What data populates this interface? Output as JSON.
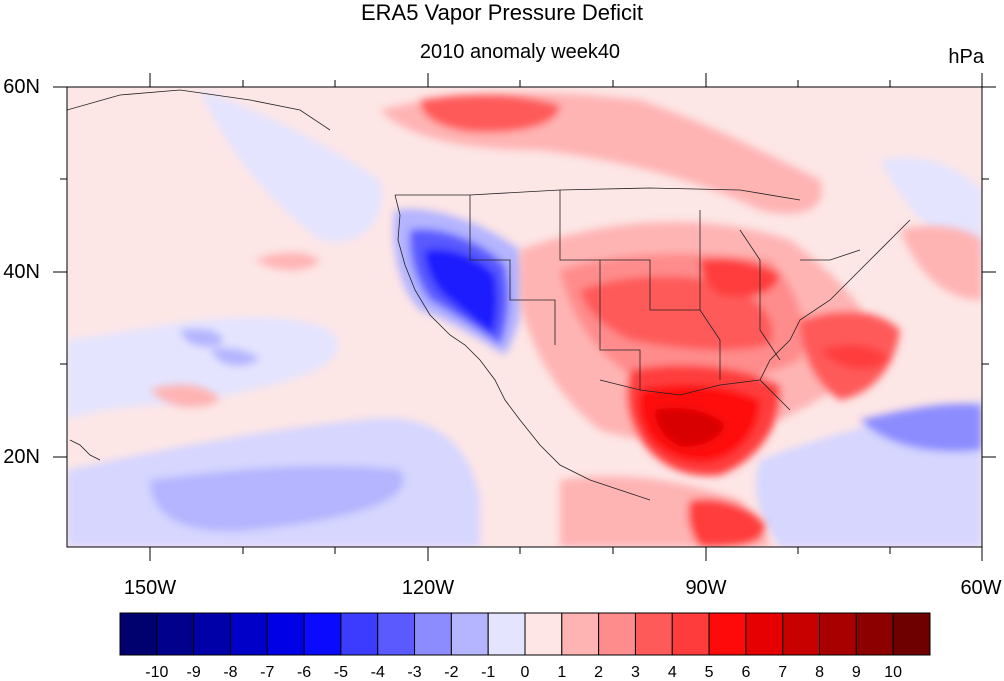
{
  "title": "ERA5 Vapor Pressure Deficit",
  "subtitle": "2010 anomaly week40",
  "units": "hPa",
  "axes": {
    "lat_ticks": [
      "60N",
      "40N",
      "20N"
    ],
    "lon_ticks": [
      "150W",
      "120W",
      "90W",
      "60W"
    ]
  },
  "colorbar": {
    "labels": [
      "-10",
      "-9",
      "-8",
      "-7",
      "-6",
      "-5",
      "-4",
      "-3",
      "-2",
      "-1",
      "0",
      "1",
      "2",
      "3",
      "4",
      "5",
      "6",
      "7",
      "8",
      "9",
      "10"
    ],
    "colors": [
      "#00006e",
      "#00008c",
      "#0000a8",
      "#0000c8",
      "#0000e6",
      "#0a0aff",
      "#3c3cff",
      "#5a5aff",
      "#8c8cff",
      "#b4b4ff",
      "#e4e4ff",
      "#ffe6e6",
      "#ffb4b4",
      "#ff8c8c",
      "#ff5a5a",
      "#ff3c3c",
      "#ff0a0a",
      "#e60000",
      "#c80000",
      "#a80000",
      "#8c0000",
      "#6e0000"
    ]
  },
  "map": {
    "background_color": "#fdeaea",
    "domain": {
      "lon": [
        -160,
        -60
      ],
      "lat": [
        10,
        60
      ]
    }
  }
}
